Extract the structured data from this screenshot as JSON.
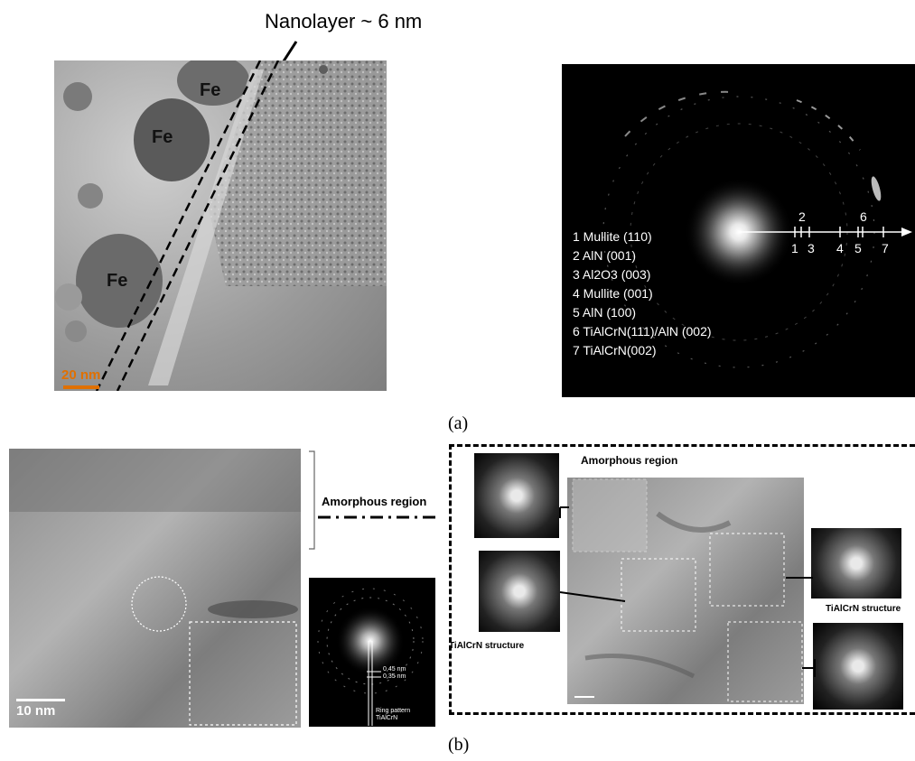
{
  "panel_a": {
    "nanolayer_label": "Nanolayer ~ 6 nm",
    "fe_labels": [
      "Fe",
      "Fe",
      "Fe"
    ],
    "scalebar_left": "20 nm",
    "saed": {
      "marks_top": [
        "2",
        "6"
      ],
      "marks_bottom": [
        "1",
        "3",
        "4",
        "5",
        "7"
      ],
      "legend": [
        "1 Mullite (110)",
        "2 AlN (001)",
        "3 Al2O3 (003)",
        "4 Mullite (001)",
        "5 AlN (100)",
        "6 TiAlCrN(111)/AlN (002)",
        "7 TiAlCrN(002)"
      ]
    },
    "caption": "(a)"
  },
  "panel_b": {
    "left_scalebar": "10 nm",
    "amorphous_region": "Amorphous region",
    "saed_small": {
      "d1": "0,45 nm",
      "d2": "0,35 nm",
      "ring": "Ring pattern",
      "material": "TiAlCrN"
    },
    "right_amorphous": "Amorphous region",
    "tialcrn_left": "TiAlCrN structure",
    "tialcrn_right": "TiAlCrN structure",
    "caption": "(b)"
  }
}
